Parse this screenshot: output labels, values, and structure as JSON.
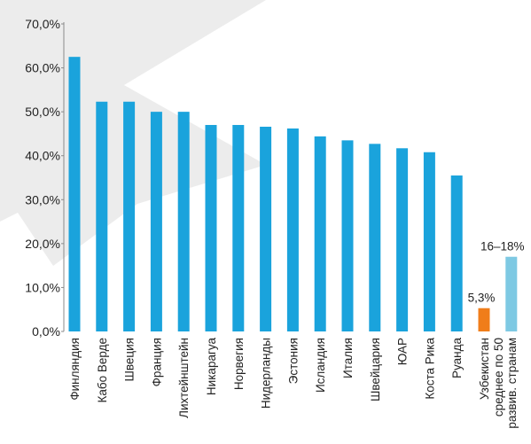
{
  "chart_data": {
    "type": "bar",
    "title": "",
    "xlabel": "",
    "ylabel": "",
    "ylim": [
      0,
      70
    ],
    "y_tick_values": [
      0,
      10,
      20,
      30,
      40,
      50,
      60,
      70
    ],
    "y_tick_labels": [
      "0,0%",
      "10,0%",
      "20,0%",
      "30,0%",
      "40,0%",
      "50,0%",
      "60,0%",
      "70,0%"
    ],
    "grid": false,
    "categories": [
      "Финляндия",
      "Кабо Верде",
      "Швеция",
      "Франция",
      "Лихтейнштейн",
      "Никарагуа",
      "Норвегия",
      "Нидерланды",
      "Эстония",
      "Исландия",
      "Италия",
      "Швейцария",
      "ЮАР",
      "Коста Рика",
      "Руанда",
      "Узбекистан",
      "среднее по 50 развив. странам"
    ],
    "category_lines": [
      [
        "Финляндия"
      ],
      [
        "Кабо Верде"
      ],
      [
        "Швеция"
      ],
      [
        "Франция"
      ],
      [
        "Лихтейнштейн"
      ],
      [
        "Никарагуа"
      ],
      [
        "Норвегия"
      ],
      [
        "Нидерланды"
      ],
      [
        "Эстония"
      ],
      [
        "Исландия"
      ],
      [
        "Италия"
      ],
      [
        "Швейцария"
      ],
      [
        "ЮАР"
      ],
      [
        "Коста Рика"
      ],
      [
        "Руанда"
      ],
      [
        "Узбекистан"
      ],
      [
        "среднее по 50",
        "развив. странам"
      ]
    ],
    "values": [
      62.5,
      52.3,
      52.3,
      50.0,
      50.0,
      47.0,
      47.0,
      46.6,
      46.2,
      44.4,
      43.5,
      42.7,
      41.7,
      40.8,
      35.5,
      5.3,
      17.0
    ],
    "value_labels": [
      "",
      "",
      "",
      "",
      "",
      "",
      "",
      "",
      "",
      "",
      "",
      "",
      "",
      "",
      "",
      "5,3%",
      "16–18%"
    ],
    "colors": {
      "default": "#1aa3dc",
      "highlight": "#f07d1a",
      "average": "#7ec9e3",
      "axis": "#8a8a8a",
      "text": "#222222",
      "watermark": "#d4d4d4"
    },
    "bar_color_keys": [
      "default",
      "default",
      "default",
      "default",
      "default",
      "default",
      "default",
      "default",
      "default",
      "default",
      "default",
      "default",
      "default",
      "default",
      "default",
      "highlight",
      "average"
    ]
  }
}
